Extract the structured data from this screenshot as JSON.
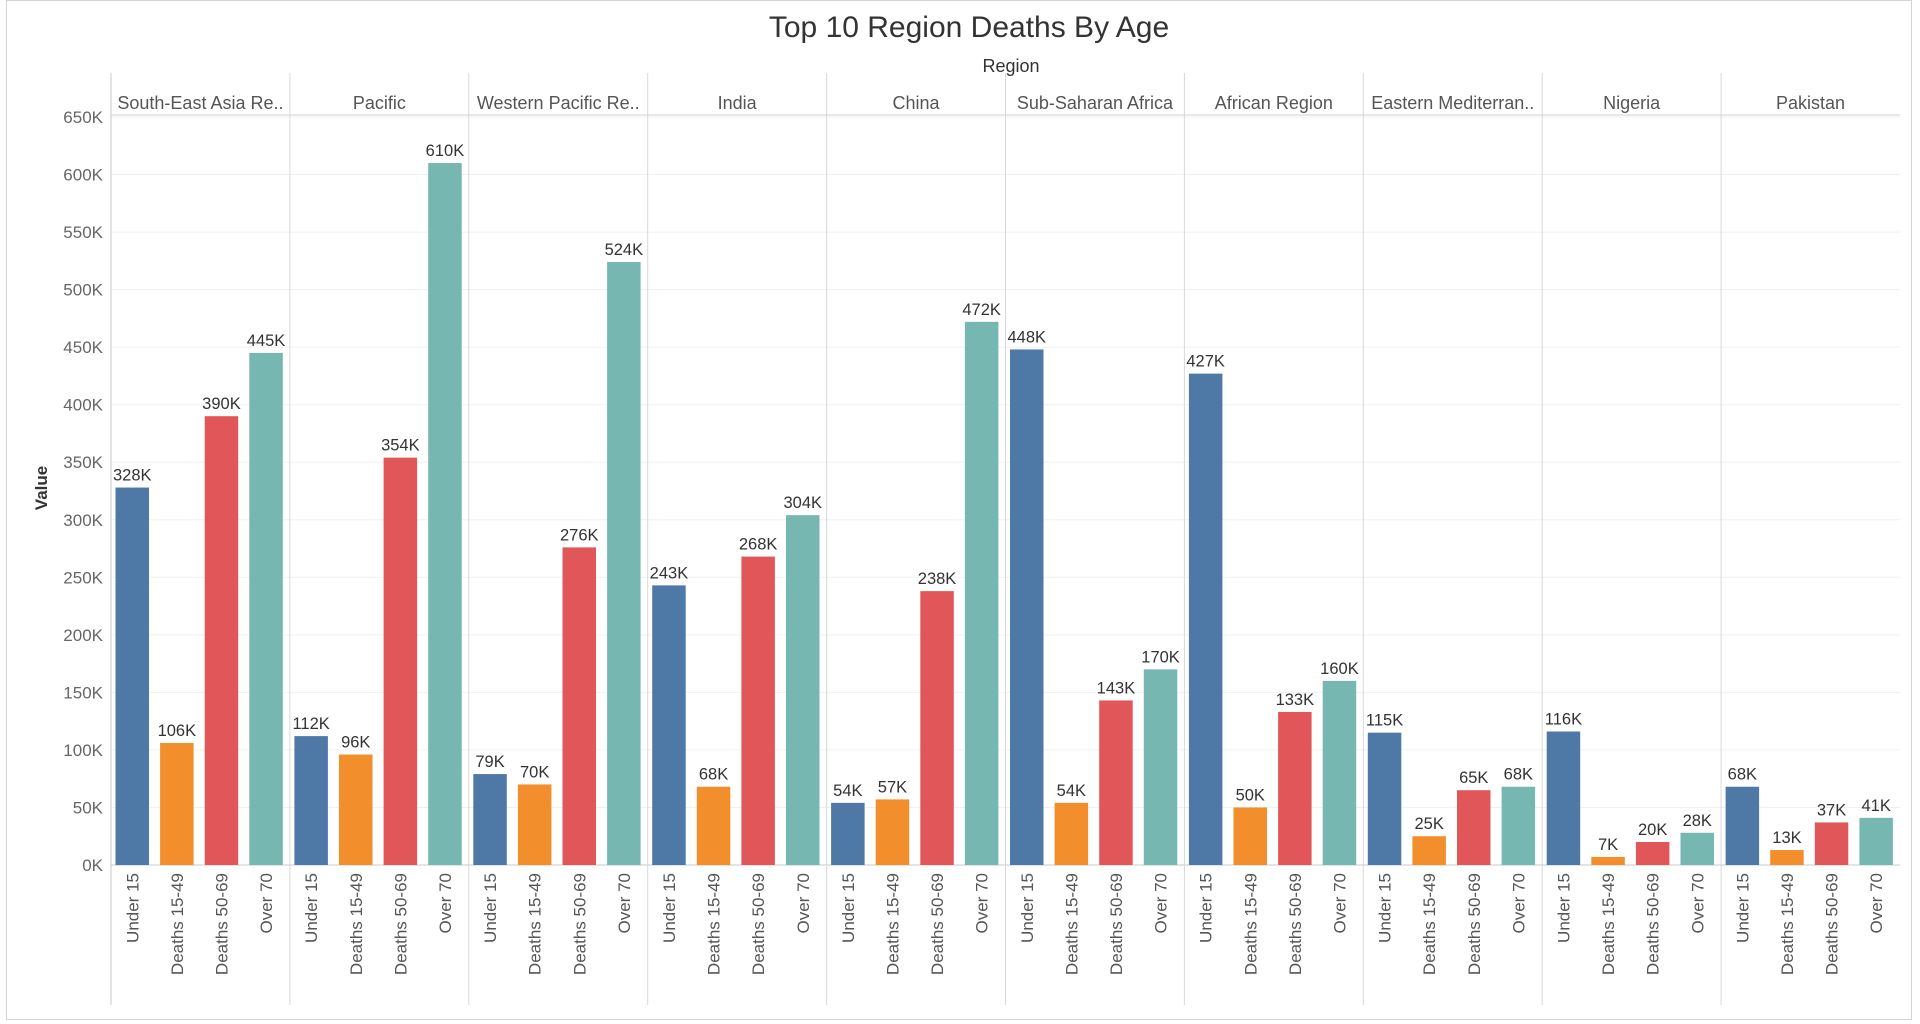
{
  "chart_data": {
    "type": "bar",
    "title": "Top 10 Region Deaths By Age",
    "column_header": "Region",
    "ylabel": "Value",
    "ylim": [
      0,
      650000
    ],
    "yticks": [
      0,
      50000,
      100000,
      150000,
      200000,
      250000,
      300000,
      350000,
      400000,
      450000,
      500000,
      550000,
      600000,
      650000
    ],
    "ytick_labels": [
      "0K",
      "50K",
      "100K",
      "150K",
      "200K",
      "250K",
      "300K",
      "350K",
      "400K",
      "450K",
      "500K",
      "550K",
      "600K",
      "650K"
    ],
    "grid": true,
    "categories": [
      "Under 15",
      "Deaths 15-49",
      "Deaths  50-69",
      "Over 70"
    ],
    "colors": [
      "#4e79a7",
      "#f28e2b",
      "#e15759",
      "#76b7b2"
    ],
    "panels": [
      {
        "region": "South-East Asia Re..",
        "values": [
          328000,
          106000,
          390000,
          445000
        ],
        "labels": [
          "328K",
          "106K",
          "390K",
          "445K"
        ]
      },
      {
        "region": "Pacific",
        "values": [
          112000,
          96000,
          354000,
          610000
        ],
        "labels": [
          "112K",
          "96K",
          "354K",
          "610K"
        ]
      },
      {
        "region": "Western Pacific Re..",
        "values": [
          79000,
          70000,
          276000,
          524000
        ],
        "labels": [
          "79K",
          "70K",
          "276K",
          "524K"
        ]
      },
      {
        "region": "India",
        "values": [
          243000,
          68000,
          268000,
          304000
        ],
        "labels": [
          "243K",
          "68K",
          "268K",
          "304K"
        ]
      },
      {
        "region": "China",
        "values": [
          54000,
          57000,
          238000,
          472000
        ],
        "labels": [
          "54K",
          "57K",
          "238K",
          "472K"
        ]
      },
      {
        "region": "Sub-Saharan Africa",
        "values": [
          448000,
          54000,
          143000,
          170000
        ],
        "labels": [
          "448K",
          "54K",
          "143K",
          "170K"
        ]
      },
      {
        "region": "African Region",
        "values": [
          427000,
          50000,
          133000,
          160000
        ],
        "labels": [
          "427K",
          "50K",
          "133K",
          "160K"
        ]
      },
      {
        "region": "Eastern Mediterran..",
        "values": [
          115000,
          25000,
          65000,
          68000
        ],
        "labels": [
          "115K",
          "25K",
          "65K",
          "68K"
        ]
      },
      {
        "region": "Nigeria",
        "values": [
          116000,
          7000,
          20000,
          28000
        ],
        "labels": [
          "116K",
          "7K",
          "20K",
          "28K"
        ]
      },
      {
        "region": "Pakistan",
        "values": [
          68000,
          13000,
          37000,
          41000
        ],
        "labels": [
          "68K",
          "13K",
          "37K",
          "41K"
        ]
      }
    ]
  }
}
